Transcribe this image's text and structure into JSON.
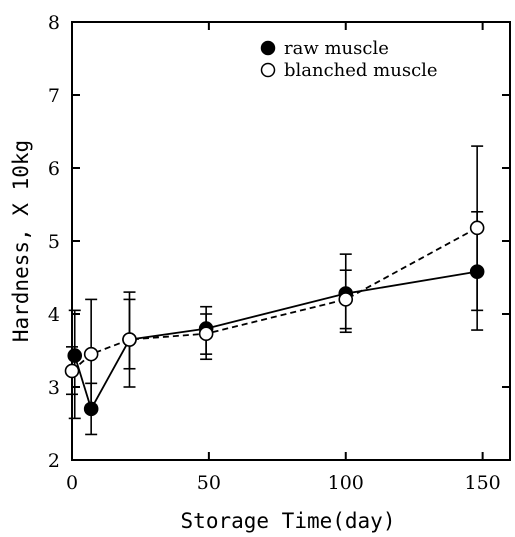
{
  "chart_data": {
    "type": "line",
    "xlabel": "Storage Time(day)",
    "ylabel": "Hardness, X 10kg",
    "xlim": [
      0,
      160
    ],
    "ylim": [
      2,
      8
    ],
    "x_ticks": [
      0,
      50,
      100,
      150
    ],
    "y_ticks": [
      2,
      3,
      4,
      5,
      6,
      7,
      8
    ],
    "x_tick_labels": [
      "0",
      "50",
      "100",
      "150"
    ],
    "y_tick_labels": [
      "2",
      "3",
      "4",
      "5",
      "6",
      "7",
      "8"
    ],
    "grid": false,
    "legend_position": "top-right",
    "series": [
      {
        "name": "raw muscle",
        "marker": "filled-circle",
        "line_style": "solid",
        "color": "#000000",
        "x": [
          1,
          7,
          21,
          49,
          100,
          148
        ],
        "y": [
          3.43,
          2.7,
          3.65,
          3.8,
          4.28,
          4.58
        ],
        "err_low": [
          2.57,
          2.35,
          3.0,
          3.38,
          3.75,
          3.78
        ],
        "err_high": [
          4.05,
          3.05,
          4.3,
          4.1,
          4.82,
          5.4
        ]
      },
      {
        "name": "blanched muscle",
        "marker": "open-circle",
        "line_style": "dashed",
        "color": "#000000",
        "x": [
          0,
          7,
          21,
          49,
          100,
          148
        ],
        "y": [
          3.22,
          3.45,
          3.65,
          3.73,
          4.2,
          5.18
        ],
        "err_low": [
          2.9,
          2.75,
          3.25,
          3.45,
          3.8,
          4.05
        ],
        "err_high": [
          3.55,
          4.2,
          4.2,
          4.0,
          4.6,
          6.3
        ]
      }
    ]
  }
}
